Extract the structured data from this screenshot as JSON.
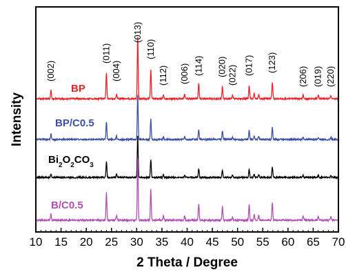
{
  "chart_data": {
    "type": "line",
    "xlabel": "2 Theta / Degree",
    "ylabel": "Intensity",
    "xlim": [
      10,
      70
    ],
    "xticks": [
      10,
      15,
      20,
      25,
      30,
      35,
      40,
      45,
      50,
      55,
      60,
      65,
      70
    ],
    "yticks_shown": false,
    "peak_labels": [
      {
        "x": 13.0,
        "label": "(002)"
      },
      {
        "x": 24.0,
        "label": "(011)"
      },
      {
        "x": 26.0,
        "label": "(004)"
      },
      {
        "x": 30.2,
        "label": "(013)"
      },
      {
        "x": 32.8,
        "label": "(110)"
      },
      {
        "x": 35.3,
        "label": "(112)"
      },
      {
        "x": 39.5,
        "label": "(006)"
      },
      {
        "x": 42.3,
        "label": "(114)"
      },
      {
        "x": 47.0,
        "label": "(020)"
      },
      {
        "x": 49.0,
        "label": "(022)"
      },
      {
        "x": 52.3,
        "label": "(017)"
      },
      {
        "x": 56.9,
        "label": "(123)"
      },
      {
        "x": 63.0,
        "label": "(206)"
      },
      {
        "x": 66.0,
        "label": "(019)"
      },
      {
        "x": 68.5,
        "label": "(220)"
      }
    ],
    "series": [
      {
        "name": "BP",
        "color": "#e8232a",
        "offset": 3,
        "peaks": [
          [
            13.0,
            0.14
          ],
          [
            24.0,
            0.42
          ],
          [
            26.0,
            0.08
          ],
          [
            30.2,
            1.0
          ],
          [
            32.8,
            0.46
          ],
          [
            35.3,
            0.06
          ],
          [
            39.5,
            0.08
          ],
          [
            42.3,
            0.25
          ],
          [
            47.0,
            0.2
          ],
          [
            49.0,
            0.05
          ],
          [
            52.3,
            0.22
          ],
          [
            53.3,
            0.09
          ],
          [
            54.2,
            0.07
          ],
          [
            56.9,
            0.26
          ],
          [
            63.0,
            0.06
          ],
          [
            66.0,
            0.06
          ],
          [
            68.5,
            0.05
          ]
        ]
      },
      {
        "name": "BP/C0.5",
        "color": "#3b4fa8",
        "offset": 2,
        "peaks": [
          [
            13.0,
            0.12
          ],
          [
            24.0,
            0.4
          ],
          [
            26.0,
            0.08
          ],
          [
            30.2,
            1.0
          ],
          [
            32.8,
            0.46
          ],
          [
            35.3,
            0.06
          ],
          [
            39.5,
            0.07
          ],
          [
            42.3,
            0.23
          ],
          [
            47.0,
            0.19
          ],
          [
            49.0,
            0.05
          ],
          [
            52.3,
            0.2
          ],
          [
            53.3,
            0.09
          ],
          [
            54.2,
            0.07
          ],
          [
            56.9,
            0.27
          ],
          [
            63.0,
            0.05
          ],
          [
            66.0,
            0.05
          ],
          [
            68.5,
            0.05
          ]
        ]
      },
      {
        "name": "Bi2O2CO3",
        "color": "#000000",
        "offset": 1,
        "peaks": [
          [
            13.0,
            0.09
          ],
          [
            24.0,
            0.38
          ],
          [
            26.0,
            0.07
          ],
          [
            30.2,
            1.0
          ],
          [
            32.8,
            0.44
          ],
          [
            35.3,
            0.06
          ],
          [
            39.5,
            0.06
          ],
          [
            42.3,
            0.22
          ],
          [
            47.0,
            0.18
          ],
          [
            49.0,
            0.05
          ],
          [
            52.3,
            0.2
          ],
          [
            53.3,
            0.08
          ],
          [
            54.2,
            0.07
          ],
          [
            56.9,
            0.25
          ],
          [
            63.0,
            0.05
          ],
          [
            66.0,
            0.05
          ],
          [
            68.5,
            0.05
          ]
        ]
      },
      {
        "name": "B/C0.5",
        "color": "#b04fb5",
        "offset": 0,
        "peaks": [
          [
            13.0,
            0.1
          ],
          [
            24.0,
            0.44
          ],
          [
            26.0,
            0.08
          ],
          [
            30.2,
            1.0
          ],
          [
            32.8,
            0.49
          ],
          [
            35.3,
            0.07
          ],
          [
            39.5,
            0.08
          ],
          [
            42.3,
            0.27
          ],
          [
            47.0,
            0.22
          ],
          [
            49.0,
            0.05
          ],
          [
            52.3,
            0.26
          ],
          [
            53.3,
            0.1
          ],
          [
            54.2,
            0.08
          ],
          [
            56.9,
            0.29
          ],
          [
            63.0,
            0.07
          ],
          [
            66.0,
            0.06
          ],
          [
            68.5,
            0.06
          ]
        ]
      }
    ]
  }
}
